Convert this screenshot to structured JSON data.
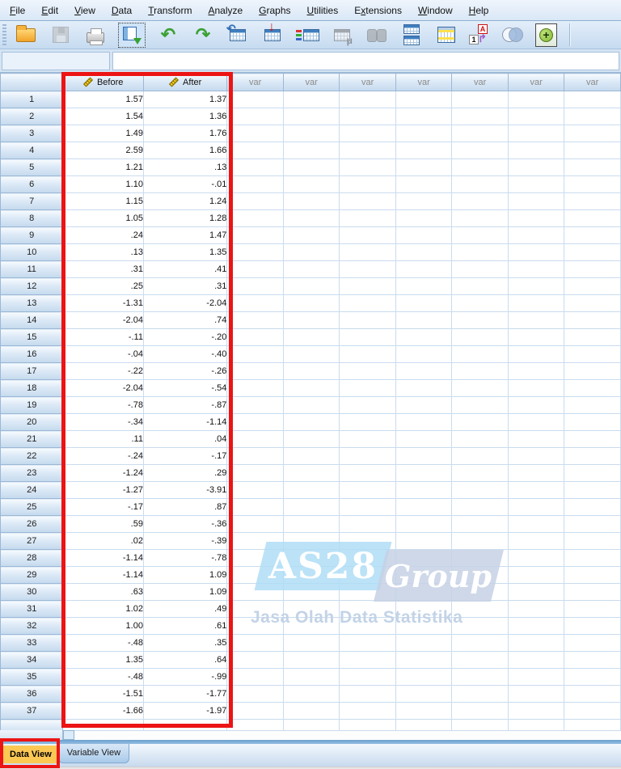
{
  "app": {
    "name": "SPSS Data Editor",
    "view": "Data View"
  },
  "menu_bar": {
    "items": [
      {
        "label": "File",
        "mnemonic_index": 0
      },
      {
        "label": "Edit",
        "mnemonic_index": 0
      },
      {
        "label": "View",
        "mnemonic_index": 0
      },
      {
        "label": "Data",
        "mnemonic_index": 0
      },
      {
        "label": "Transform",
        "mnemonic_index": 0
      },
      {
        "label": "Analyze",
        "mnemonic_index": 0
      },
      {
        "label": "Graphs",
        "mnemonic_index": 0
      },
      {
        "label": "Utilities",
        "mnemonic_index": 0
      },
      {
        "label": "Extensions",
        "mnemonic_index": 1
      },
      {
        "label": "Window",
        "mnemonic_index": 0
      },
      {
        "label": "Help",
        "mnemonic_index": 0
      }
    ]
  },
  "toolbar": {
    "icons": [
      {
        "name": "open-data-icon",
        "disabled": false
      },
      {
        "name": "save-icon",
        "disabled": true
      },
      {
        "name": "print-icon",
        "disabled": false
      },
      {
        "name": "recall-dialogs-icon",
        "disabled": false,
        "selected": true
      },
      {
        "name": "undo-icon",
        "disabled": false
      },
      {
        "name": "redo-icon",
        "disabled": false
      },
      {
        "name": "goto-case-icon",
        "disabled": false
      },
      {
        "name": "goto-variable-icon",
        "disabled": false
      },
      {
        "name": "variables-icon",
        "disabled": false
      },
      {
        "name": "descriptives-icon",
        "disabled": true
      },
      {
        "name": "find-icon",
        "disabled": true
      },
      {
        "name": "split-file-icon",
        "disabled": false
      },
      {
        "name": "select-cases-icon",
        "disabled": false
      },
      {
        "name": "value-labels-icon",
        "disabled": false
      },
      {
        "name": "use-variable-sets-icon",
        "disabled": false
      },
      {
        "name": "custom-dialogs-icon",
        "disabled": false
      }
    ]
  },
  "cell_editor": {
    "reference_value": "",
    "value": ""
  },
  "grid": {
    "columns": [
      {
        "key": "before",
        "label": "Before",
        "measure": "scale"
      },
      {
        "key": "after",
        "label": "After",
        "measure": "scale"
      }
    ],
    "var_placeholder": "var",
    "var_column_count": 7,
    "rows": [
      {
        "n": 1,
        "before": "1.57",
        "after": "1.37"
      },
      {
        "n": 2,
        "before": "1.54",
        "after": "1.36"
      },
      {
        "n": 3,
        "before": "1.49",
        "after": "1.76"
      },
      {
        "n": 4,
        "before": "2.59",
        "after": "1.66"
      },
      {
        "n": 5,
        "before": "1.21",
        "after": ".13"
      },
      {
        "n": 6,
        "before": "1.10",
        "after": "-.01"
      },
      {
        "n": 7,
        "before": "1.15",
        "after": "1.24"
      },
      {
        "n": 8,
        "before": "1.05",
        "after": "1.28"
      },
      {
        "n": 9,
        "before": ".24",
        "after": "1.47"
      },
      {
        "n": 10,
        "before": ".13",
        "after": "1.35"
      },
      {
        "n": 11,
        "before": ".31",
        "after": ".41"
      },
      {
        "n": 12,
        "before": ".25",
        "after": ".31"
      },
      {
        "n": 13,
        "before": "-1.31",
        "after": "-2.04"
      },
      {
        "n": 14,
        "before": "-2.04",
        "after": ".74"
      },
      {
        "n": 15,
        "before": "-.11",
        "after": "-.20"
      },
      {
        "n": 16,
        "before": "-.04",
        "after": "-.40"
      },
      {
        "n": 17,
        "before": "-.22",
        "after": "-.26"
      },
      {
        "n": 18,
        "before": "-2.04",
        "after": "-.54"
      },
      {
        "n": 19,
        "before": "-.78",
        "after": "-.87"
      },
      {
        "n": 20,
        "before": "-.34",
        "after": "-1.14"
      },
      {
        "n": 21,
        "before": ".11",
        "after": ".04"
      },
      {
        "n": 22,
        "before": "-.24",
        "after": "-.17"
      },
      {
        "n": 23,
        "before": "-1.24",
        "after": ".29"
      },
      {
        "n": 24,
        "before": "-1.27",
        "after": "-3.91"
      },
      {
        "n": 25,
        "before": "-.17",
        "after": ".87"
      },
      {
        "n": 26,
        "before": ".59",
        "after": "-.36"
      },
      {
        "n": 27,
        "before": ".02",
        "after": "-.39"
      },
      {
        "n": 28,
        "before": "-1.14",
        "after": "-.78"
      },
      {
        "n": 29,
        "before": "-1.14",
        "after": "1.09"
      },
      {
        "n": 30,
        "before": ".63",
        "after": "1.09"
      },
      {
        "n": 31,
        "before": "1.02",
        "after": ".49"
      },
      {
        "n": 32,
        "before": "1.00",
        "after": ".61"
      },
      {
        "n": 33,
        "before": "-.48",
        "after": ".35"
      },
      {
        "n": 34,
        "before": "1.35",
        "after": ".64"
      },
      {
        "n": 35,
        "before": "-.48",
        "after": "-.99"
      },
      {
        "n": 36,
        "before": "-1.51",
        "after": "-1.77"
      },
      {
        "n": 37,
        "before": "-1.66",
        "after": "-1.97"
      }
    ]
  },
  "watermark": {
    "brand": "AS28",
    "brand_suffix": "Group",
    "tagline": "Jasa Olah Data Statistika",
    "brand_bg": "#afddf6",
    "suffix_bg": "#c6d1e5",
    "tagline_color": "#c3d3e7"
  },
  "tabs": {
    "data_view": "Data View",
    "variable_view": "Variable View",
    "active": "Data View"
  },
  "annotations": {
    "highlight_color": "#ec1414",
    "highlighted": [
      "Before/After columns",
      "Data View tab"
    ]
  }
}
